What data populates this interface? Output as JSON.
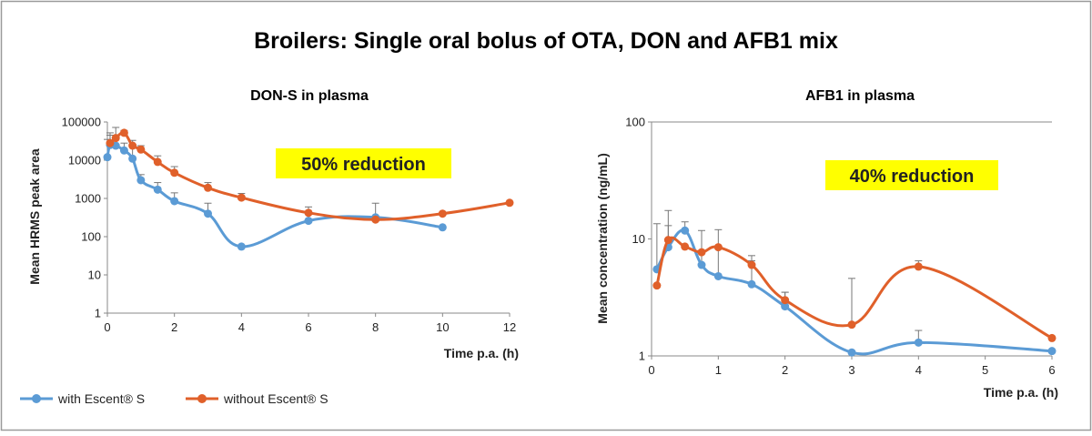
{
  "title": "Broilers: Single oral bolus of OTA, DON and AFB1 mix",
  "colors": {
    "with": "#5b9bd5",
    "without": "#e0602a",
    "callout_bg": "#ffff00",
    "axis": "#888888",
    "error": "#777777"
  },
  "legend": {
    "with_label": "with Escent® S",
    "without_label": "without Escent® S"
  },
  "chart_data": [
    {
      "type": "line",
      "title": "DON-S in plasma",
      "xlabel": "Time p.a. (h)",
      "ylabel": "Mean HRMS peak area",
      "yscale": "log",
      "xlim": [
        0,
        12
      ],
      "ylim": [
        1,
        100000
      ],
      "x_ticks": [
        "0",
        "2",
        "4",
        "6",
        "8",
        "10",
        "12"
      ],
      "y_ticks": [
        "1",
        "10",
        "100",
        "1000",
        "10000",
        "100000"
      ],
      "annotation": "50% reduction",
      "series": [
        {
          "name": "with Escent® S",
          "x": [
            0,
            0.08,
            0.25,
            0.5,
            0.75,
            1,
            1.5,
            2,
            3,
            4,
            6,
            8,
            10
          ],
          "values": [
            12000,
            25000,
            24000,
            18000,
            11000,
            3000,
            1700,
            850,
            400,
            55,
            260,
            320,
            175
          ],
          "errors": [
            35000,
            45000,
            45000,
            28000,
            22000,
            4200,
            2600,
            1400,
            750,
            0,
            420,
            750,
            0
          ]
        },
        {
          "name": "without Escent® S",
          "x": [
            0.08,
            0.25,
            0.5,
            0.75,
            1,
            1.5,
            2,
            3,
            4,
            6,
            8,
            10,
            12
          ],
          "values": [
            28000,
            38000,
            52000,
            24000,
            19000,
            9000,
            4700,
            1900,
            1050,
            420,
            280,
            400,
            770
          ],
          "errors": [
            52000,
            72000,
            60000,
            33000,
            24000,
            13000,
            6800,
            2600,
            1350,
            600,
            0,
            0,
            0
          ]
        }
      ]
    },
    {
      "type": "line",
      "title": "AFB1 in plasma",
      "xlabel": "Time p.a. (h)",
      "ylabel": "Mean concentration (ng/mL)",
      "yscale": "log",
      "xlim": [
        0,
        6
      ],
      "ylim": [
        1,
        100
      ],
      "x_ticks": [
        "0",
        "1",
        "2",
        "3",
        "4",
        "5",
        "6"
      ],
      "y_ticks": [
        "1",
        "10",
        "100"
      ],
      "annotation": "40% reduction",
      "series": [
        {
          "name": "with Escent® S",
          "x": [
            0.08,
            0.25,
            0.5,
            0.75,
            1,
            1.5,
            2,
            3,
            4,
            6
          ],
          "values": [
            5.5,
            8.5,
            11.8,
            6,
            4.8,
            4.1,
            2.65,
            1.07,
            1.3,
            1.1
          ],
          "errors": [
            13.5,
            17.5,
            14,
            11.8,
            8.5,
            6.5,
            3.5,
            0,
            1.65,
            0
          ]
        },
        {
          "name": "without Escent® S",
          "x": [
            0.08,
            0.25,
            0.5,
            0.75,
            1,
            1.5,
            2,
            3,
            4,
            6
          ],
          "values": [
            4,
            9.8,
            8.6,
            7.7,
            8.5,
            6,
            3,
            1.85,
            5.8,
            1.42
          ],
          "errors": [
            0,
            13,
            0,
            0,
            12,
            7.2,
            3.5,
            4.6,
            6.5,
            0
          ]
        }
      ]
    }
  ]
}
